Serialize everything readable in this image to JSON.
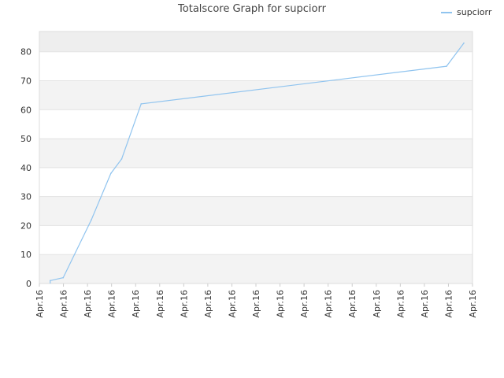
{
  "chart_data": {
    "type": "line",
    "title": "Totalscore Graph for supciorr",
    "xlabel": "",
    "ylabel": "",
    "x_tick_labels": [
      "Apr.16",
      "Apr.16",
      "Apr.16",
      "Apr.16",
      "Apr.16",
      "Apr.16",
      "Apr.16",
      "Apr.16",
      "Apr.16",
      "Apr.16",
      "Apr.16",
      "Apr.16",
      "Apr.16",
      "Apr.16",
      "Apr.16",
      "Apr.16",
      "Apr.16",
      "Apr.16",
      "Apr.16"
    ],
    "y_ticks": [
      0,
      10,
      20,
      30,
      40,
      50,
      60,
      70,
      80
    ],
    "ylim": [
      0,
      87
    ],
    "grid": true,
    "legend": "top-right",
    "series": [
      {
        "name": "supciorr",
        "color": "#90c4ef",
        "values": [
          1,
          2,
          22,
          38,
          43,
          62,
          75,
          83
        ]
      }
    ]
  }
}
